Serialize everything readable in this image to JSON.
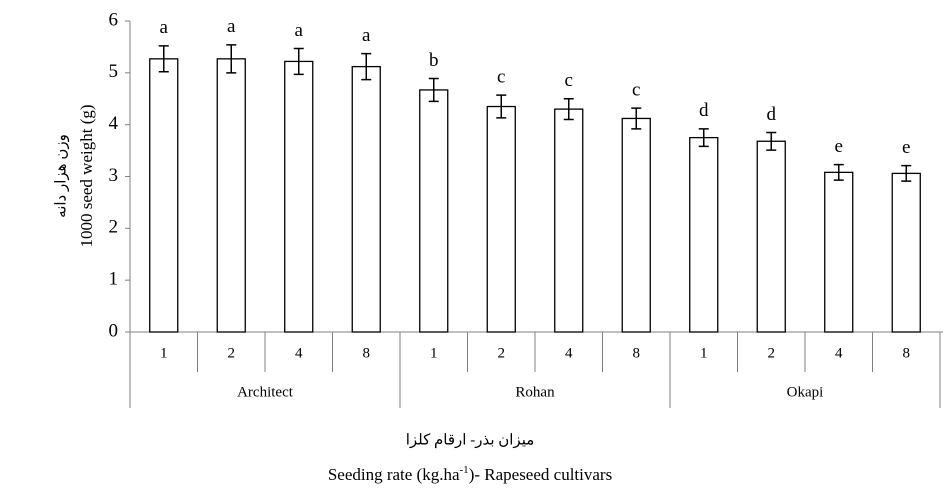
{
  "chart_data": {
    "type": "bar",
    "y_label_fa": "وزن هزار دانه",
    "y_label": "1000 seed weight  (g)",
    "x_label_fa": "میزان بذر- ارقام کلزا",
    "x_label_parts": [
      "Seeding rate (kg.ha",
      "-1",
      ")- Rapeseed cultivars"
    ],
    "groups": [
      "Architect",
      "Rohan",
      "Okapi"
    ],
    "categories": [
      "1",
      "2",
      "4",
      "8",
      "1",
      "2",
      "4",
      "8",
      "1",
      "2",
      "4",
      "8"
    ],
    "values": [
      5.27,
      5.27,
      5.22,
      5.12,
      4.67,
      4.35,
      4.3,
      4.12,
      3.75,
      3.68,
      3.08,
      3.06
    ],
    "errors": [
      0.25,
      0.27,
      0.25,
      0.25,
      0.22,
      0.22,
      0.2,
      0.2,
      0.17,
      0.17,
      0.15,
      0.15
    ],
    "annotations": [
      "a",
      "a",
      "a",
      "a",
      "b",
      "c",
      "c",
      "c",
      "d",
      "d",
      "e",
      "e"
    ],
    "color": "#ffffff",
    "edge_color": "#000000",
    "ylim": [
      0,
      6
    ],
    "yticks": [
      0,
      1,
      2,
      3,
      4,
      5,
      6
    ],
    "grid": false
  }
}
